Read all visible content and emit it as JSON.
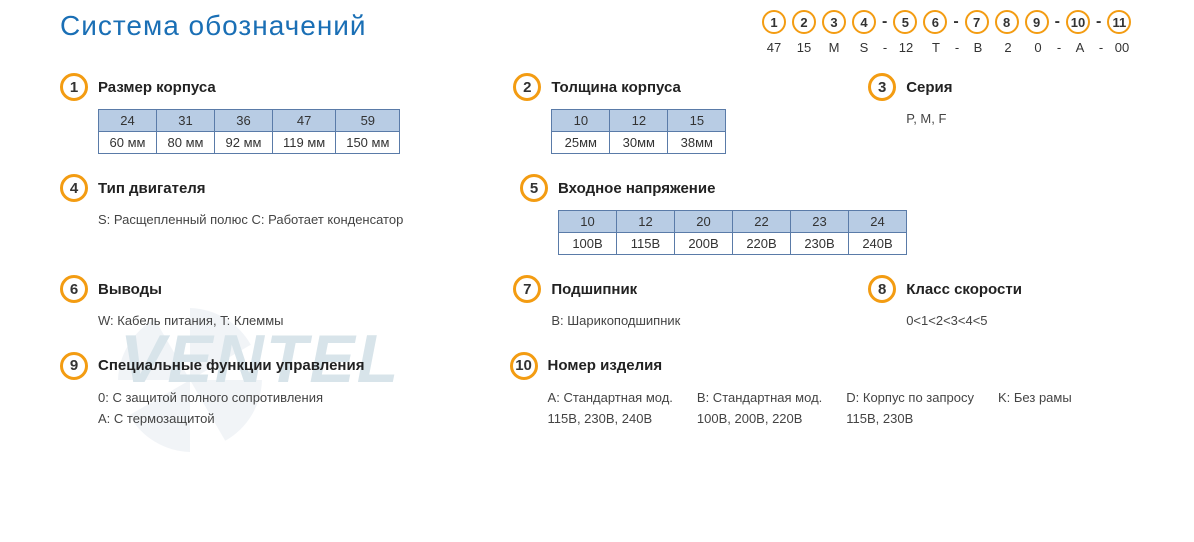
{
  "colors": {
    "accent_blue": "#1a6fb5",
    "circle_orange": "#f39c12",
    "table_header_bg": "#b8cce4",
    "table_border": "#5a7ba8",
    "text": "#333333",
    "watermark": "#d8e4ea"
  },
  "title": "Система обозначений",
  "chain": {
    "circles": [
      "1",
      "2",
      "3",
      "4",
      "5",
      "6",
      "7",
      "8",
      "9",
      "10",
      "11"
    ],
    "separators_after": [
      3,
      5,
      8,
      9
    ],
    "values": [
      "47",
      "15",
      "M",
      "S",
      "12",
      "T",
      "B",
      "2",
      "0",
      "A",
      "00"
    ]
  },
  "sections": {
    "s1": {
      "num": "1",
      "title": "Размер корпуса",
      "table": {
        "header": [
          "24",
          "31",
          "36",
          "47",
          "59"
        ],
        "row": [
          "60 мм",
          "80 мм",
          "92 мм",
          "119 мм",
          "150 мм"
        ]
      }
    },
    "s2": {
      "num": "2",
      "title": "Толщина корпуса",
      "table": {
        "header": [
          "10",
          "12",
          "15"
        ],
        "row": [
          "25мм",
          "30мм",
          "38мм"
        ]
      }
    },
    "s3": {
      "num": "3",
      "title": "Серия",
      "text": "P, M, F"
    },
    "s4": {
      "num": "4",
      "title": "Тип двигателя",
      "text": "S: Расщепленный полюс C: Работает конденсатор"
    },
    "s5": {
      "num": "5",
      "title": "Входное напряжение",
      "table": {
        "header": [
          "10",
          "12",
          "20",
          "22",
          "23",
          "24"
        ],
        "row": [
          "100В",
          "115В",
          "200В",
          "220В",
          "230В",
          "240В"
        ]
      }
    },
    "s6": {
      "num": "6",
      "title": "Выводы",
      "text": "W: Кабель питания, T: Клеммы"
    },
    "s7": {
      "num": "7",
      "title": "Подшипник",
      "text": "B: Шарикоподшипник"
    },
    "s8": {
      "num": "8",
      "title": "Класс скорости",
      "text": "0<1<2<3<4<5"
    },
    "s9": {
      "num": "9",
      "title": "Специальные функции управления",
      "lines": [
        "0: С защитой полного сопротивления",
        "A: С термозащитой"
      ]
    },
    "s10": {
      "num": "10",
      "title": "Номер изделия",
      "items": [
        {
          "k": "A: Стандартная мод.",
          "v": "115В, 230В, 240В"
        },
        {
          "k": "B: Стандартная мод.",
          "v": "100В, 200В, 220В"
        },
        {
          "k": "D: Корпус по запросу",
          "v": "115В, 230В"
        },
        {
          "k": "K: Без рамы",
          "v": ""
        }
      ]
    }
  }
}
